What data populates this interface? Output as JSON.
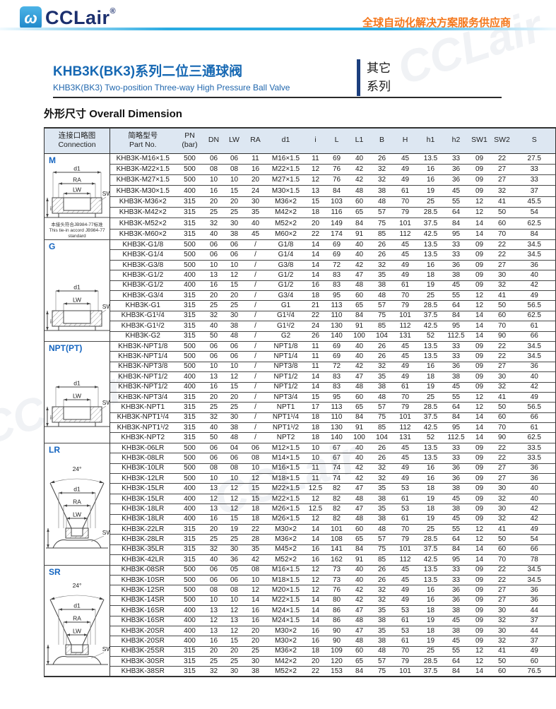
{
  "header": {
    "logo_text": "CCLair",
    "logo_reg": "®",
    "logo_glyph": "ω",
    "tagline": "全球自动化解决方案服务供应商"
  },
  "title": {
    "zh": "KHB3K(BK3)系列二位三通球阀",
    "en": "KHB3K(BK3) Two-position Three-way High Pressure Ball Valve",
    "series_line1": "其它",
    "series_line2": "系列"
  },
  "section": {
    "title_zh": "外形尺寸",
    "title_en": "Overall Dimension"
  },
  "watermark_text": "CCLair",
  "diagram_labels": {
    "d1": "d1",
    "ra": "RA",
    "lw": "LW",
    "sw2": "SW2",
    "i": "i",
    "angle": "24°"
  },
  "colors": {
    "accent_blue": "#1565c0",
    "brand_navy": "#1b2f6e",
    "tagline_orange": "#f4771c",
    "header_bg": "#dde7f2",
    "bar_cyan": "#29abe2"
  },
  "table": {
    "header": {
      "connection_zh": "连接口略图",
      "connection_en": "Connection",
      "part_zh": "简略型号",
      "part_en": "Part No.",
      "pn_line1": "PN",
      "pn_line2": "(bar)",
      "cols": [
        "DN",
        "LW",
        "RA",
        "d1",
        "i",
        "L",
        "L1",
        "B",
        "H",
        "h1",
        "h2",
        "SW1",
        "SW2",
        "S"
      ]
    },
    "groups": [
      {
        "id": "m",
        "label": "M",
        "diagram": "socket-ra",
        "note": {
          "zh": "本接头符合JB984-77标准",
          "en1": "This tie-in accord JB984-77",
          "en2": "standard"
        },
        "rows": [
          [
            "KHB3K-M16×1.5",
            "500",
            "06",
            "06",
            "11",
            "M16×1.5",
            "11",
            "69",
            "40",
            "26",
            "45",
            "13.5",
            "33",
            "09",
            "22",
            "27.5"
          ],
          [
            "KHB3K-M22×1.5",
            "500",
            "08",
            "08",
            "16",
            "M22×1.5",
            "12",
            "76",
            "42",
            "32",
            "49",
            "16",
            "36",
            "09",
            "27",
            "33"
          ],
          [
            "KHB3K-M27×1.5",
            "500",
            "10",
            "10",
            "20",
            "M27×1.5",
            "12",
            "76",
            "42",
            "32",
            "49",
            "16",
            "36",
            "09",
            "27",
            "33"
          ],
          [
            "KHB3K-M30×1.5",
            "400",
            "16",
            "15",
            "24",
            "M30×1.5",
            "13",
            "84",
            "48",
            "38",
            "61",
            "19",
            "45",
            "09",
            "32",
            "37"
          ],
          [
            "KHB3K-M36×2",
            "315",
            "20",
            "20",
            "30",
            "M36×2",
            "15",
            "103",
            "60",
            "48",
            "70",
            "25",
            "55",
            "12",
            "41",
            "45.5"
          ],
          [
            "KHB3K-M42×2",
            "315",
            "25",
            "25",
            "35",
            "M42×2",
            "18",
            "116",
            "65",
            "57",
            "79",
            "28.5",
            "64",
            "12",
            "50",
            "54"
          ],
          [
            "KHB3K-M52×2",
            "315",
            "32",
            "30",
            "40",
            "M52×2",
            "20",
            "149",
            "84",
            "75",
            "101",
            "37.5",
            "84",
            "14",
            "60",
            "62.5"
          ],
          [
            "KHB3K-M60×2",
            "315",
            "40",
            "38",
            "45",
            "M60×2",
            "22",
            "174",
            "91",
            "85",
            "112",
            "42.5",
            "95",
            "14",
            "70",
            "84"
          ]
        ]
      },
      {
        "id": "g",
        "label": "G",
        "diagram": "socket",
        "rows": [
          [
            "KHB3K-G1/8",
            "500",
            "06",
            "06",
            "/",
            "G1/8",
            "14",
            "69",
            "40",
            "26",
            "45",
            "13.5",
            "33",
            "09",
            "22",
            "34.5"
          ],
          [
            "KHB3K-G1/4",
            "500",
            "06",
            "06",
            "/",
            "G1/4",
            "14",
            "69",
            "40",
            "26",
            "45",
            "13.5",
            "33",
            "09",
            "22",
            "34.5"
          ],
          [
            "KHB3K-G3/8",
            "500",
            "10",
            "10",
            "/",
            "G3/8",
            "14",
            "72",
            "42",
            "32",
            "49",
            "16",
            "36",
            "09",
            "27",
            "36"
          ],
          [
            "KHB3K-G1/2",
            "400",
            "13",
            "12",
            "/",
            "G1/2",
            "14",
            "83",
            "47",
            "35",
            "49",
            "18",
            "38",
            "09",
            "30",
            "40"
          ],
          [
            "KHB3K-G1/2",
            "400",
            "16",
            "15",
            "/",
            "G1/2",
            "16",
            "83",
            "48",
            "38",
            "61",
            "19",
            "45",
            "09",
            "32",
            "42"
          ],
          [
            "KHB3K-G3/4",
            "315",
            "20",
            "20",
            "/",
            "G3/4",
            "18",
            "95",
            "60",
            "48",
            "70",
            "25",
            "55",
            "12",
            "41",
            "49"
          ],
          [
            "KHB3K-G1",
            "315",
            "25",
            "25",
            "/",
            "G1",
            "21",
            "113",
            "65",
            "57",
            "79",
            "28.5",
            "64",
            "12",
            "50",
            "56.5"
          ],
          [
            "KHB3K-G1¹/4",
            "315",
            "32",
            "30",
            "/",
            "G1¹/4",
            "22",
            "110",
            "84",
            "75",
            "101",
            "37.5",
            "84",
            "14",
            "60",
            "62.5"
          ],
          [
            "KHB3K-G1¹/2",
            "315",
            "40",
            "38",
            "/",
            "G1¹/2",
            "24",
            "130",
            "91",
            "85",
            "112",
            "42.5",
            "95",
            "14",
            "70",
            "61"
          ],
          [
            "KHB3K-G2",
            "315",
            "50",
            "48",
            "/",
            "G2",
            "26",
            "140",
            "100",
            "104",
            "131",
            "52",
            "112.5",
            "14",
            "90",
            "66"
          ]
        ]
      },
      {
        "id": "npt",
        "label": "NPT(PT)",
        "diagram": "socket",
        "rows": [
          [
            "KHB3K-NPT1/8",
            "500",
            "06",
            "06",
            "/",
            "NPT1/8",
            "11",
            "69",
            "40",
            "26",
            "45",
            "13.5",
            "33",
            "09",
            "22",
            "34.5"
          ],
          [
            "KHB3K-NPT1/4",
            "500",
            "06",
            "06",
            "/",
            "NPT1/4",
            "11",
            "69",
            "40",
            "26",
            "45",
            "13.5",
            "33",
            "09",
            "22",
            "34.5"
          ],
          [
            "KHB3K-NPT3/8",
            "500",
            "10",
            "10",
            "/",
            "NPT3/8",
            "11",
            "72",
            "42",
            "32",
            "49",
            "16",
            "36",
            "09",
            "27",
            "36"
          ],
          [
            "KHB3K-NPT1/2",
            "400",
            "13",
            "12",
            "/",
            "NPT1/2",
            "14",
            "83",
            "47",
            "35",
            "49",
            "18",
            "38",
            "09",
            "30",
            "40"
          ],
          [
            "KHB3K-NPT1/2",
            "400",
            "16",
            "15",
            "/",
            "NPT1/2",
            "14",
            "83",
            "48",
            "38",
            "61",
            "19",
            "45",
            "09",
            "32",
            "42"
          ],
          [
            "KHB3K-NPT3/4",
            "315",
            "20",
            "20",
            "/",
            "NPT3/4",
            "15",
            "95",
            "60",
            "48",
            "70",
            "25",
            "55",
            "12",
            "41",
            "49"
          ],
          [
            "KHB3K-NPT1",
            "315",
            "25",
            "25",
            "/",
            "NPT1",
            "17",
            "113",
            "65",
            "57",
            "79",
            "28.5",
            "64",
            "12",
            "50",
            "56.5"
          ],
          [
            "KHB3K-NPT1¹/4",
            "315",
            "32",
            "30",
            "/",
            "NPT1¹/4",
            "18",
            "110",
            "84",
            "75",
            "101",
            "37.5",
            "84",
            "14",
            "60",
            "66"
          ],
          [
            "KHB3K-NPT1¹/2",
            "315",
            "40",
            "38",
            "/",
            "NPT1¹/2",
            "18",
            "130",
            "91",
            "85",
            "112",
            "42.5",
            "95",
            "14",
            "70",
            "61"
          ],
          [
            "KHB3K-NPT2",
            "315",
            "50",
            "48",
            "/",
            "NPT2",
            "18",
            "140",
            "100",
            "104",
            "131",
            "52",
            "112.5",
            "14",
            "90",
            "62.5"
          ]
        ]
      },
      {
        "id": "lr",
        "label": "LR",
        "diagram": "cone",
        "rows": [
          [
            "KHB3K-06LR",
            "500",
            "06",
            "04",
            "06",
            "M12×1.5",
            "10",
            "67",
            "40",
            "26",
            "45",
            "13.5",
            "33",
            "09",
            "22",
            "33.5"
          ],
          [
            "KHB3K-08LR",
            "500",
            "06",
            "06",
            "08",
            "M14×1.5",
            "10",
            "67",
            "40",
            "26",
            "45",
            "13.5",
            "33",
            "09",
            "22",
            "33.5"
          ],
          [
            "KHB3K-10LR",
            "500",
            "08",
            "08",
            "10",
            "M16×1.5",
            "11",
            "74",
            "42",
            "32",
            "49",
            "16",
            "36",
            "09",
            "27",
            "36"
          ],
          [
            "KHB3K-12LR",
            "500",
            "10",
            "10",
            "12",
            "M18×1.5",
            "11",
            "74",
            "42",
            "32",
            "49",
            "16",
            "36",
            "09",
            "27",
            "36"
          ],
          [
            "KHB3K-15LR",
            "400",
            "13",
            "12",
            "15",
            "M22×1.5",
            "12.5",
            "82",
            "47",
            "35",
            "53",
            "18",
            "38",
            "09",
            "30",
            "40"
          ],
          [
            "KHB3K-15LR",
            "400",
            "12",
            "12",
            "15",
            "M22×1.5",
            "12",
            "82",
            "48",
            "38",
            "61",
            "19",
            "45",
            "09",
            "32",
            "40"
          ],
          [
            "KHB3K-18LR",
            "400",
            "13",
            "12",
            "18",
            "M26×1.5",
            "12.5",
            "82",
            "47",
            "35",
            "53",
            "18",
            "38",
            "09",
            "30",
            "42"
          ],
          [
            "KHB3K-18LR",
            "400",
            "16",
            "15",
            "18",
            "M26×1.5",
            "12",
            "82",
            "48",
            "38",
            "61",
            "19",
            "45",
            "09",
            "32",
            "42"
          ],
          [
            "KHB3K-22LR",
            "315",
            "20",
            "19",
            "22",
            "M30×2",
            "14",
            "101",
            "60",
            "48",
            "70",
            "25",
            "55",
            "12",
            "41",
            "49"
          ],
          [
            "KHB3K-28LR",
            "315",
            "25",
            "25",
            "28",
            "M36×2",
            "14",
            "108",
            "65",
            "57",
            "79",
            "28.5",
            "64",
            "12",
            "50",
            "54"
          ],
          [
            "KHB3K-35LR",
            "315",
            "32",
            "30",
            "35",
            "M45×2",
            "16",
            "141",
            "84",
            "75",
            "101",
            "37.5",
            "84",
            "14",
            "60",
            "66"
          ],
          [
            "KHB3K-42LR",
            "315",
            "40",
            "36",
            "42",
            "M52×2",
            "16",
            "162",
            "91",
            "85",
            "112",
            "42.5",
            "95",
            "14",
            "70",
            "78"
          ]
        ]
      },
      {
        "id": "sr",
        "label": "SR",
        "diagram": "cone",
        "rows": [
          [
            "KHB3K-08SR",
            "500",
            "06",
            "05",
            "08",
            "M16×1.5",
            "12",
            "73",
            "40",
            "26",
            "45",
            "13.5",
            "33",
            "09",
            "22",
            "34.5"
          ],
          [
            "KHB3K-10SR",
            "500",
            "06",
            "06",
            "10",
            "M18×1.5",
            "12",
            "73",
            "40",
            "26",
            "45",
            "13.5",
            "33",
            "09",
            "22",
            "34.5"
          ],
          [
            "KHB3K-12SR",
            "500",
            "08",
            "08",
            "12",
            "M20×1.5",
            "12",
            "76",
            "42",
            "32",
            "49",
            "16",
            "36",
            "09",
            "27",
            "36"
          ],
          [
            "KHB3K-14SR",
            "500",
            "10",
            "10",
            "14",
            "M22×1.5",
            "14",
            "80",
            "42",
            "32",
            "49",
            "16",
            "36",
            "09",
            "27",
            "36"
          ],
          [
            "KHB3K-16SR",
            "400",
            "13",
            "12",
            "16",
            "M24×1.5",
            "14",
            "86",
            "47",
            "35",
            "53",
            "18",
            "38",
            "09",
            "30",
            "44"
          ],
          [
            "KHB3K-16SR",
            "400",
            "12",
            "13",
            "16",
            "M24×1.5",
            "14",
            "86",
            "48",
            "38",
            "61",
            "19",
            "45",
            "09",
            "32",
            "37"
          ],
          [
            "KHB3K-20SR",
            "400",
            "13",
            "12",
            "20",
            "M30×2",
            "16",
            "90",
            "47",
            "35",
            "53",
            "18",
            "38",
            "09",
            "30",
            "44"
          ],
          [
            "KHB3K-20SR",
            "400",
            "16",
            "15",
            "20",
            "M30×2",
            "16",
            "90",
            "48",
            "38",
            "61",
            "19",
            "45",
            "09",
            "32",
            "37"
          ],
          [
            "KHB3K-25SR",
            "315",
            "20",
            "20",
            "25",
            "M36×2",
            "18",
            "109",
            "60",
            "48",
            "70",
            "25",
            "55",
            "12",
            "41",
            "49"
          ],
          [
            "KHB3K-30SR",
            "315",
            "25",
            "25",
            "30",
            "M42×2",
            "20",
            "120",
            "65",
            "57",
            "79",
            "28.5",
            "64",
            "12",
            "50",
            "60"
          ],
          [
            "KHB3K-38SR",
            "315",
            "32",
            "30",
            "38",
            "M52×2",
            "22",
            "153",
            "84",
            "75",
            "101",
            "37.5",
            "84",
            "14",
            "60",
            "76.5"
          ]
        ]
      }
    ]
  }
}
